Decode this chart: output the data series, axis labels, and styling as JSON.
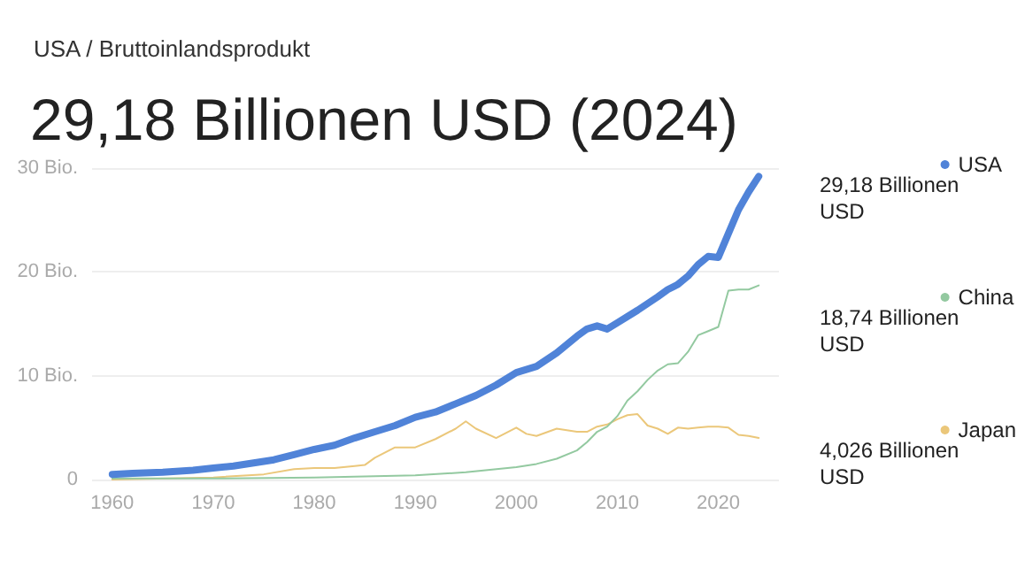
{
  "chart_data": {
    "type": "line",
    "subtitle": "USA / Bruttoinlandsprodukt",
    "title": "29,18 Billionen USD (2024)",
    "series": [
      {
        "name": "USA",
        "color": "#5083d8",
        "x": [
          1960,
          1962,
          1965,
          1968,
          1970,
          1972,
          1974,
          1976,
          1978,
          1980,
          1982,
          1984,
          1986,
          1988,
          1990,
          1992,
          1994,
          1996,
          1998,
          2000,
          2002,
          2004,
          2006,
          2007,
          2008,
          2009,
          2010,
          2012,
          2014,
          2015,
          2016,
          2017,
          2018,
          2019,
          2020,
          2021,
          2022,
          2023,
          2024
        ],
        "values": [
          0.5,
          0.6,
          0.7,
          0.9,
          1.1,
          1.3,
          1.6,
          1.9,
          2.4,
          2.9,
          3.3,
          4,
          4.6,
          5.2,
          6,
          6.5,
          7.3,
          8.1,
          9.1,
          10.3,
          10.9,
          12.2,
          13.8,
          14.5,
          14.8,
          14.5,
          15.1,
          16.3,
          17.6,
          18.3,
          18.8,
          19.6,
          20.7,
          21.5,
          21.4,
          23.7,
          26,
          27.7,
          29.2
        ]
      },
      {
        "name": "China",
        "color": "#93c9a0",
        "x": [
          1960,
          1970,
          1980,
          1985,
          1990,
          1995,
          2000,
          2002,
          2004,
          2006,
          2007,
          2008,
          2009,
          2010,
          2011,
          2012,
          2013,
          2014,
          2015,
          2016,
          2017,
          2018,
          2019,
          2020,
          2021,
          2022,
          2023,
          2024
        ],
        "values": [
          0.1,
          0.1,
          0.2,
          0.3,
          0.4,
          0.7,
          1.2,
          1.5,
          2,
          2.8,
          3.6,
          4.6,
          5.1,
          6.1,
          7.6,
          8.5,
          9.6,
          10.5,
          11.1,
          11.2,
          12.3,
          13.9,
          14.3,
          14.7,
          18.2,
          18.3,
          18.3,
          18.7
        ]
      },
      {
        "name": "Japan",
        "color": "#ebc77a",
        "x": [
          1960,
          1970,
          1975,
          1978,
          1980,
          1982,
          1984,
          1985,
          1986,
          1988,
          1990,
          1992,
          1994,
          1995,
          1996,
          1998,
          2000,
          2001,
          2002,
          2004,
          2006,
          2007,
          2008,
          2009,
          2010,
          2011,
          2012,
          2013,
          2014,
          2015,
          2016,
          2017,
          2018,
          2019,
          2020,
          2021,
          2022,
          2023,
          2024
        ],
        "values": [
          0,
          0.2,
          0.5,
          1,
          1.1,
          1.1,
          1.3,
          1.4,
          2.1,
          3.1,
          3.1,
          3.9,
          4.9,
          5.6,
          4.9,
          4,
          5,
          4.4,
          4.2,
          4.9,
          4.6,
          4.6,
          5.1,
          5.3,
          5.8,
          6.2,
          6.3,
          5.2,
          4.9,
          4.4,
          5,
          4.9,
          5,
          5.1,
          5.1,
          5,
          4.3,
          4.2,
          4
        ]
      }
    ],
    "annotations": [
      "29,18 Billionen USD",
      "18,74 Billionen USD",
      "4,026 Billionen USD"
    ],
    "xlim": [
      1958,
      2026
    ],
    "xticks": [
      1960,
      1970,
      1980,
      1990,
      2000,
      2010,
      2020
    ],
    "ylim": [
      0,
      30
    ],
    "yticks": [
      0,
      {
        "value": 10,
        "label": "10 Bio."
      },
      {
        "value": 20,
        "label": "20 Bio."
      },
      {
        "value": 30,
        "label": "30 Bio."
      }
    ],
    "grid": "y",
    "legend": "right",
    "marker": "none",
    "line_style": "solid"
  }
}
